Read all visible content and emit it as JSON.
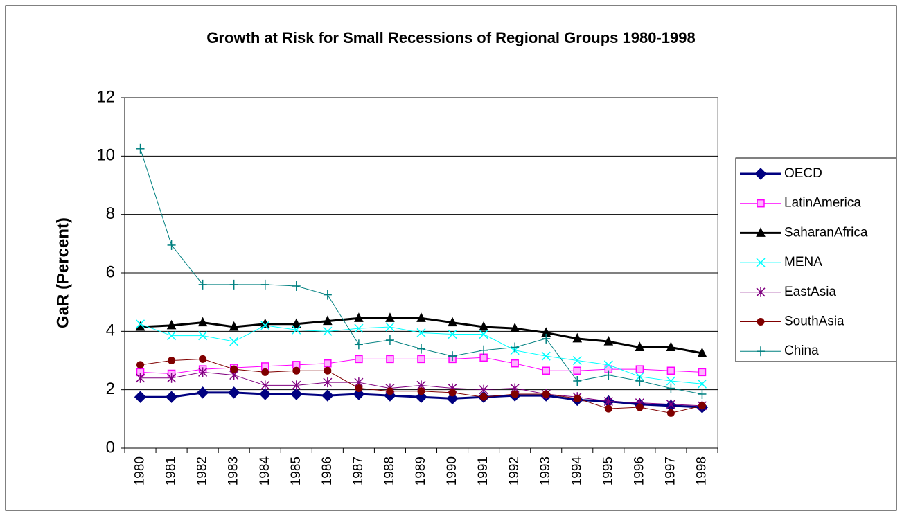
{
  "chart_data": {
    "type": "line",
    "title": "Growth at Risk for Small Recessions of Regional Groups 1980-1998",
    "y_label": "GaR (Percent)",
    "categories": [
      "1980",
      "1981",
      "1982",
      "1983",
      "1984",
      "1985",
      "1986",
      "1987",
      "1988",
      "1989",
      "1990",
      "1991",
      "1992",
      "1993",
      "1994",
      "1995",
      "1996",
      "1997",
      "1998"
    ],
    "ylim": [
      0,
      12
    ],
    "yticks": [
      0,
      2,
      4,
      6,
      8,
      10,
      12
    ],
    "grid": true,
    "legend": "right",
    "series": [
      {
        "name": "OECD",
        "color": "#000080",
        "marker": "diamond",
        "line_width": 3,
        "values": [
          1.75,
          1.75,
          1.9,
          1.9,
          1.85,
          1.85,
          1.8,
          1.85,
          1.8,
          1.75,
          1.7,
          1.75,
          1.8,
          1.8,
          1.65,
          1.6,
          1.5,
          1.45,
          1.4
        ]
      },
      {
        "name": "LatinAmerica",
        "color": "#ff00ff",
        "marker": "square",
        "line_width": 1,
        "values": [
          2.6,
          2.55,
          2.7,
          2.75,
          2.8,
          2.85,
          2.9,
          3.05,
          3.05,
          3.05,
          3.05,
          3.1,
          2.9,
          2.65,
          2.65,
          2.7,
          2.7,
          2.65,
          2.6
        ]
      },
      {
        "name": "SaharanAfrica",
        "color": "#000000",
        "marker": "triangle",
        "line_width": 3,
        "values": [
          4.15,
          4.2,
          4.3,
          4.15,
          4.25,
          4.25,
          4.35,
          4.45,
          4.45,
          4.45,
          4.3,
          4.15,
          4.1,
          3.95,
          3.75,
          3.65,
          3.45,
          3.45,
          3.25
        ]
      },
      {
        "name": "MENA",
        "color": "#00ffff",
        "marker": "x",
        "line_width": 1,
        "values": [
          4.25,
          3.85,
          3.85,
          3.65,
          4.2,
          4.05,
          4.0,
          4.1,
          4.15,
          3.95,
          3.9,
          3.9,
          3.35,
          3.15,
          3.0,
          2.85,
          2.45,
          2.3,
          2.2
        ]
      },
      {
        "name": "EastAsia",
        "color": "#800080",
        "marker": "star",
        "line_width": 1,
        "values": [
          2.4,
          2.4,
          2.6,
          2.5,
          2.15,
          2.15,
          2.25,
          2.25,
          2.05,
          2.15,
          2.05,
          2.0,
          2.05,
          1.85,
          1.75,
          1.6,
          1.55,
          1.5,
          1.45
        ]
      },
      {
        "name": "SouthAsia",
        "color": "#800000",
        "marker": "circle",
        "line_width": 1,
        "values": [
          2.85,
          3.0,
          3.05,
          2.7,
          2.6,
          2.65,
          2.65,
          2.05,
          1.95,
          1.95,
          1.9,
          1.75,
          1.85,
          1.85,
          1.7,
          1.35,
          1.4,
          1.2,
          1.45
        ]
      },
      {
        "name": "China",
        "color": "#008080",
        "marker": "plus",
        "line_width": 1,
        "values": [
          10.25,
          6.95,
          5.6,
          5.6,
          5.6,
          5.55,
          5.25,
          3.55,
          3.7,
          3.4,
          3.15,
          3.35,
          3.45,
          3.75,
          2.3,
          2.5,
          2.3,
          2.05,
          1.85
        ]
      }
    ]
  }
}
